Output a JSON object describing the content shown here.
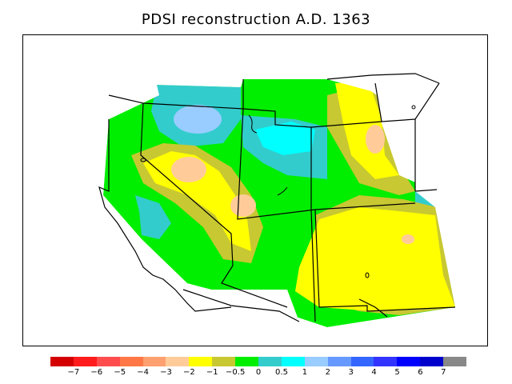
{
  "title": "PDSI reconstruction A.D. 1363",
  "legend": {
    "colors": [
      "#d40000",
      "#ff1c1c",
      "#ff4d4d",
      "#ff7744",
      "#ffa070",
      "#ffcc99",
      "#ffff00",
      "#c8c832",
      "#00ee00",
      "#33cccc",
      "#00ffff",
      "#99ccff",
      "#6699ff",
      "#3366ff",
      "#3333ff",
      "#0000ff",
      "#0000cc",
      "#888888"
    ],
    "tick_labels": [
      "−7",
      "−6",
      "−5",
      "−4",
      "−3",
      "−2",
      "−1",
      "−0.5",
      "0",
      "0.5",
      "1",
      "2",
      "3",
      "4",
      "5",
      "6",
      "7"
    ]
  }
}
